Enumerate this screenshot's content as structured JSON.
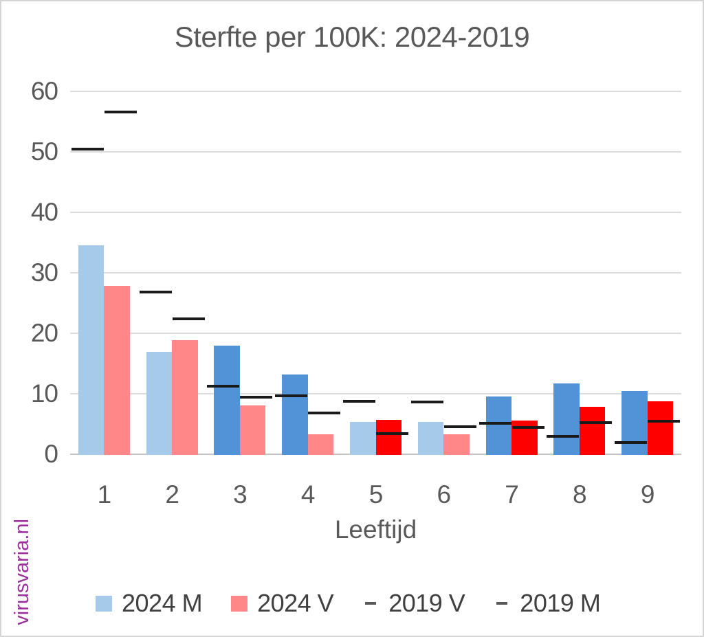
{
  "watermark": {
    "text": "virusvaria.nl",
    "color": "#9a2f9d"
  },
  "palette": {
    "light_blue": "#a6caea",
    "medium_blue": "#5193d6",
    "salmon_red": "#ff8787",
    "bright_red": "#ff0000",
    "dash_black": "#1a1a1a",
    "gridline_gray": "#dcdcdc",
    "axis_text_gray": "#595959",
    "legend_text_gray": "#404040"
  },
  "chart_data": {
    "type": "bar",
    "title": "Sterfte per 100K: 2024-2019",
    "xlabel": "Leeftijd",
    "ylabel": "",
    "categories": [
      "1",
      "2",
      "3",
      "4",
      "5",
      "6",
      "7",
      "8",
      "9"
    ],
    "ylim": [
      0,
      60
    ],
    "ytick_interval": 10,
    "ytick_labels": [
      "0",
      "10",
      "20",
      "30",
      "40",
      "50",
      "60"
    ],
    "grid": "horizontal",
    "legend_position": "bottom",
    "series": [
      {
        "name": "2024 M",
        "type": "bar",
        "slot": "left",
        "legend_swatch": "square",
        "legend_color": "#a6caea",
        "values": [
          34.6,
          16.9,
          17.9,
          13.2,
          5.3,
          5.3,
          9.5,
          11.7,
          10.4
        ],
        "bar_colors": [
          "#a6caea",
          "#a6caea",
          "#5193d6",
          "#5193d6",
          "#a6caea",
          "#a6caea",
          "#5193d6",
          "#5193d6",
          "#5193d6"
        ]
      },
      {
        "name": "2024 V",
        "type": "bar",
        "slot": "right",
        "legend_swatch": "square",
        "legend_color": "#ff8787",
        "values": [
          27.8,
          18.9,
          8.1,
          3.3,
          5.7,
          3.3,
          5.6,
          7.8,
          8.7
        ],
        "bar_colors": [
          "#ff8787",
          "#ff8787",
          "#ff8787",
          "#ff8787",
          "#ff0000",
          "#ff8787",
          "#ff0000",
          "#ff0000",
          "#ff0000"
        ]
      },
      {
        "name": "2019 V",
        "type": "dash",
        "slot": "right",
        "legend_swatch": "dash",
        "legend_color": "#595959",
        "color": "#1a1a1a",
        "values": [
          56.6,
          22.4,
          9.4,
          6.8,
          3.4,
          4.5,
          4.4,
          5.2,
          5.4
        ]
      },
      {
        "name": "2019 M",
        "type": "dash",
        "slot": "left",
        "legend_swatch": "dash",
        "legend_color": "#595959",
        "color": "#1a1a1a",
        "values": [
          50.4,
          26.8,
          11.2,
          9.7,
          8.8,
          8.6,
          5.1,
          3.0,
          1.9
        ]
      }
    ]
  }
}
